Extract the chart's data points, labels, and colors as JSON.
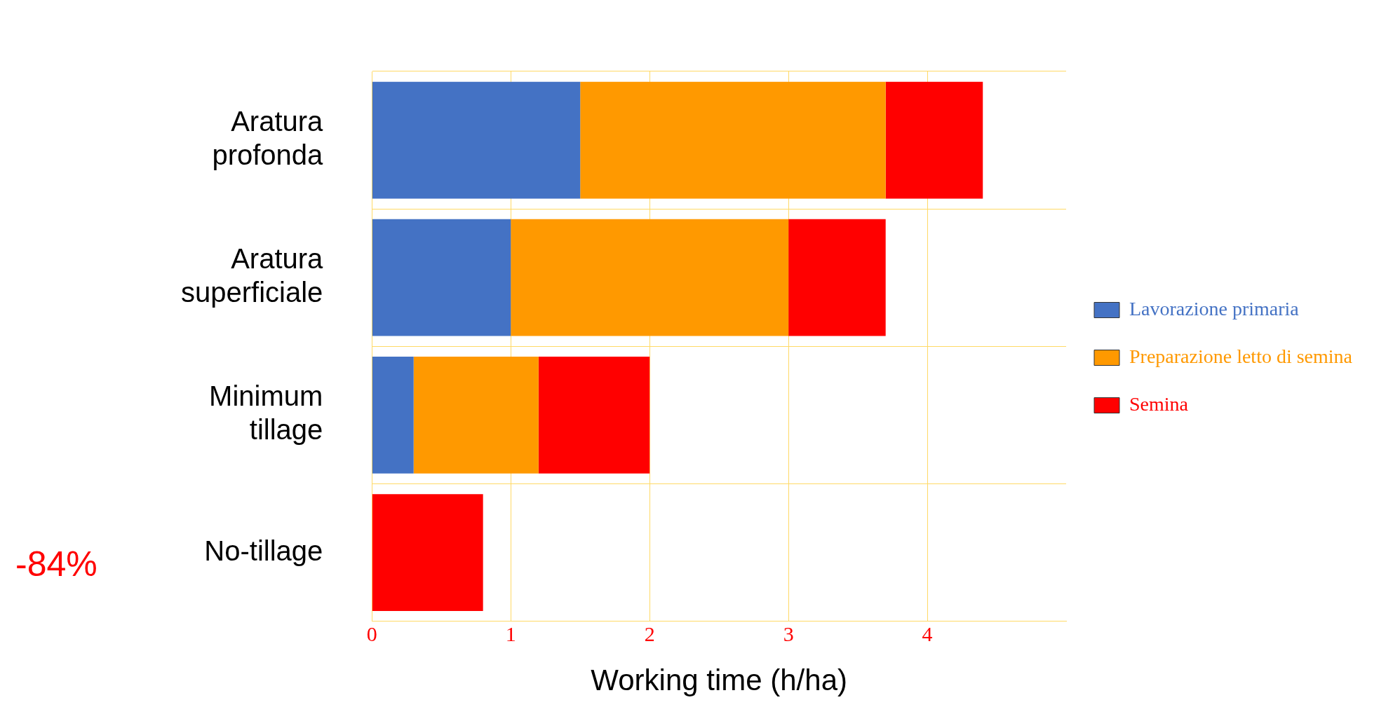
{
  "chart_data": {
    "type": "bar",
    "orientation": "horizontal",
    "stacked": true,
    "xlabel": "Working time (h/ha)",
    "categories": [
      "Aratura profonda",
      "Aratura superficiale",
      "Minimum tillage",
      "No-tillage"
    ],
    "series": [
      {
        "name": "Lavorazione primaria",
        "color": "#4472c4",
        "values": [
          1.5,
          1.0,
          0.3,
          null
        ]
      },
      {
        "name": "Preparazione letto di semina",
        "color": "#ff9900",
        "values": [
          2.2,
          2.0,
          0.9,
          null
        ]
      },
      {
        "name": "Semina",
        "color": "#ff0000",
        "values": [
          0.7,
          0.7,
          0.8,
          0.8
        ]
      }
    ],
    "xlim": [
      0,
      5
    ],
    "xticks": [
      0,
      1,
      2,
      3,
      4
    ],
    "grid": true,
    "legend": "right",
    "annotations": [
      "-84%"
    ]
  }
}
